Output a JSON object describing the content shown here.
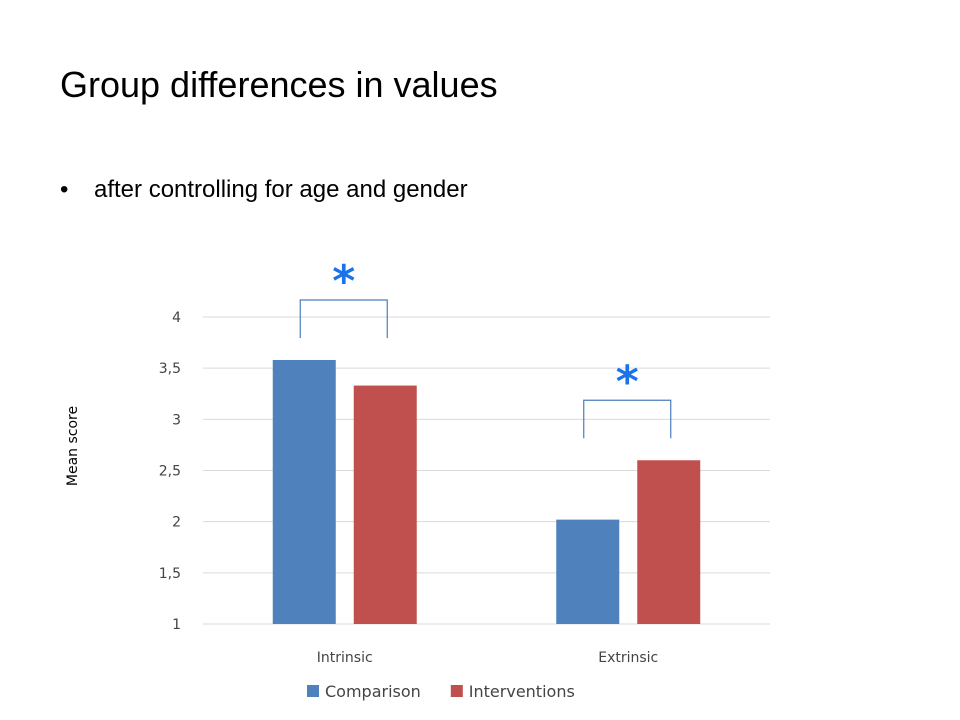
{
  "slide": {
    "title": "Group differences in values",
    "bullet": "after controlling for age and gender",
    "bullet_marker": "•"
  },
  "chart_data": {
    "type": "bar",
    "categories": [
      "Intrinsic",
      "Extrinsic"
    ],
    "series": [
      {
        "name": "Comparison",
        "values": [
          3.58,
          2.02
        ],
        "color": "#4f81bd"
      },
      {
        "name": "Interventions",
        "values": [
          3.33,
          2.6
        ],
        "color": "#c0504d"
      }
    ],
    "ylabel": "Mean score",
    "ylim": [
      1,
      4
    ],
    "yticks": [
      1,
      1.5,
      2,
      2.5,
      3,
      3.5,
      4
    ],
    "ytick_labels": [
      "1",
      "1,5",
      "2",
      "2,5",
      "3",
      "3,5",
      "4"
    ],
    "grid": true,
    "legend_position": "bottom",
    "significance": [
      {
        "category": "Intrinsic",
        "label": "*"
      },
      {
        "category": "Extrinsic",
        "label": "*"
      }
    ],
    "significance_color": "#1a73e8",
    "gridline_color": "#d9d9d9"
  }
}
